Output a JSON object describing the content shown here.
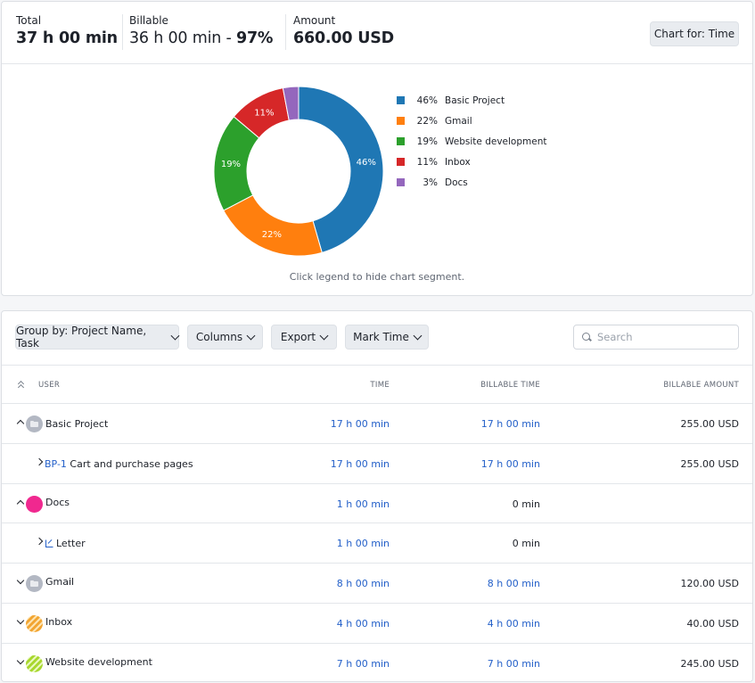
{
  "summary": {
    "total_label": "Total",
    "total_value": "37 h 00 min",
    "billable_label": "Billable",
    "billable_value": "36 h 00 min",
    "billable_sep": " - ",
    "billable_pct": "97%",
    "amount_label": "Amount",
    "amount_value": "660.00 USD",
    "chart_for_button": "Chart for: Time"
  },
  "chart_data": {
    "type": "pie",
    "donut": true,
    "categories": [
      "Basic Project",
      "Gmail",
      "Website development",
      "Inbox",
      "Docs"
    ],
    "values": [
      46,
      22,
      19,
      11,
      3
    ],
    "labels": [
      "46%",
      "22%",
      "19%",
      "11%",
      "3%"
    ],
    "colors": [
      "#1f77b4",
      "#ff7f0e",
      "#2ca02c",
      "#d62728",
      "#9467bd"
    ],
    "legend_position": "right"
  },
  "chart_hint": "Click legend to hide chart segment.",
  "toolbar": {
    "group_by": "Group by: Project Name, Task",
    "columns": "Columns",
    "export": "Export",
    "mark_time": "Mark Time",
    "search_placeholder": "Search"
  },
  "table": {
    "headers": {
      "user": "USER",
      "time": "TIME",
      "billable_time": "BILLABLE TIME",
      "billable_amount": "BILLABLE AMOUNT"
    },
    "rows": [
      {
        "name": "Basic Project",
        "time": "17 h 00 min",
        "billable_time": "17 h 00 min",
        "amount": "255.00 USD",
        "caret": "up",
        "avatar": "folder"
      },
      {
        "code": "BP-1",
        "name": "Cart and purchase pages",
        "time": "17 h 00 min",
        "billable_time": "17 h 00 min",
        "amount": "255.00 USD",
        "caret": "right"
      },
      {
        "name": "Docs",
        "time": "1 h 00 min",
        "billable_time": "0 min",
        "amount": "",
        "caret": "up",
        "avatar": "pink"
      },
      {
        "name": "Letter",
        "time": "1 h 00 min",
        "billable_time": "0 min",
        "amount": "",
        "caret": "right",
        "icon": "external-link-icon"
      },
      {
        "name": "Gmail",
        "time": "8 h 00 min",
        "billable_time": "8 h 00 min",
        "amount": "120.00 USD",
        "caret": "down",
        "avatar": "folder"
      },
      {
        "name": "Inbox",
        "time": "4 h 00 min",
        "billable_time": "4 h 00 min",
        "amount": "40.00 USD",
        "caret": "down",
        "avatar": "orange"
      },
      {
        "name": "Website development",
        "time": "7 h 00 min",
        "billable_time": "7 h 00 min",
        "amount": "245.00 USD",
        "caret": "down",
        "avatar": "lime"
      }
    ]
  }
}
